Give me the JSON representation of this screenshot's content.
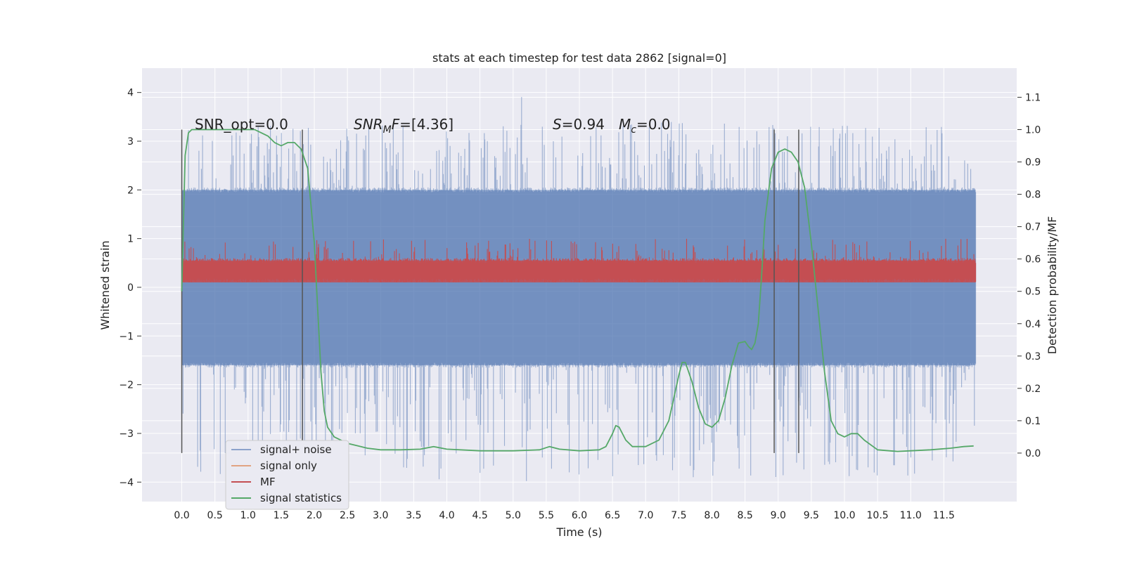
{
  "chart_data": {
    "type": "line",
    "title": "stats at each timestep for test data 2862 [signal=0]",
    "xlabel": "Time (s)",
    "ylabel": "Whitened strain",
    "ylabel_right": "Detection probability/MF",
    "xlim": [
      -0.6,
      12.6
    ],
    "ylim": [
      -4.4,
      4.5
    ],
    "ylim_right": [
      -0.15,
      1.19
    ],
    "grid": true,
    "x_ticks": [
      "0.0",
      "0.5",
      "1.0",
      "1.5",
      "2.0",
      "2.5",
      "3.0",
      "3.5",
      "4.0",
      "4.5",
      "5.0",
      "5.5",
      "6.0",
      "6.5",
      "7.0",
      "7.5",
      "8.0",
      "8.5",
      "9.0",
      "9.5",
      "10.0",
      "10.5",
      "11.0",
      "11.5"
    ],
    "y_ticks": [
      "4",
      "3",
      "2",
      "1",
      "0",
      "−1",
      "−2",
      "−3",
      "−4"
    ],
    "y_right_ticks": [
      "1.1",
      "1.0",
      "0.9",
      "0.8",
      "0.7",
      "0.6",
      "0.5",
      "0.4",
      "0.3",
      "0.2",
      "0.1",
      "0.0"
    ],
    "annotations": {
      "snr_opt": "SNR_opt=0.0",
      "snr_mf_sym": "SNR",
      "snr_mf_sub": "M",
      "snr_mf_sym2": "F",
      "snr_mf_val": "=[4.36]",
      "s_sym": "S",
      "s_val": "=0.94",
      "mc_sym": "M",
      "mc_sub": "c",
      "mc_val": "=0.0"
    },
    "vertical_markers": [
      0.0,
      1.82,
      8.94,
      9.31
    ],
    "series": [
      {
        "name": "signal+ noise",
        "color": "#4c72b0",
        "opacity": 0.5,
        "x_range": [
          0,
          11.98
        ],
        "band": [
          -1.6,
          2.0
        ],
        "peaks_max": [
          3.4,
          4.1
        ],
        "peaks_min": [
          -3.9,
          -4.0
        ],
        "axis": "left"
      },
      {
        "name": "signal only",
        "color": "#dd8452",
        "values": [],
        "axis": "left"
      },
      {
        "name": "MF",
        "color": "#c44e52",
        "x_range": [
          0,
          11.98
        ],
        "band": [
          0.1,
          0.55
        ],
        "peak_max": 1.0,
        "axis": "left"
      },
      {
        "name": "signal statistics",
        "color": "#55a868",
        "axis": "right",
        "x": [
          0.0,
          0.05,
          0.1,
          0.15,
          0.2,
          0.3,
          0.5,
          0.8,
          1.0,
          1.1,
          1.2,
          1.3,
          1.4,
          1.5,
          1.6,
          1.7,
          1.8,
          1.9,
          2.0,
          2.05,
          2.1,
          2.15,
          2.2,
          2.3,
          2.5,
          2.8,
          3.0,
          3.3,
          3.6,
          3.8,
          4.0,
          4.5,
          5.0,
          5.4,
          5.55,
          5.7,
          6.0,
          6.3,
          6.4,
          6.5,
          6.55,
          6.6,
          6.7,
          6.8,
          6.9,
          7.0,
          7.2,
          7.35,
          7.5,
          7.55,
          7.6,
          7.7,
          7.8,
          7.9,
          8.0,
          8.1,
          8.2,
          8.3,
          8.4,
          8.5,
          8.55,
          8.6,
          8.65,
          8.7,
          8.75,
          8.8,
          8.9,
          9.0,
          9.1,
          9.2,
          9.3,
          9.4,
          9.5,
          9.6,
          9.7,
          9.8,
          9.9,
          10.0,
          10.1,
          10.2,
          10.3,
          10.5,
          10.8,
          11.0,
          11.3,
          11.6,
          11.8,
          11.95
        ],
        "y": [
          0.5,
          0.92,
          0.99,
          1.0,
          1.0,
          1.0,
          1.0,
          1.0,
          1.0,
          1.0,
          0.99,
          0.98,
          0.96,
          0.95,
          0.96,
          0.96,
          0.94,
          0.88,
          0.65,
          0.45,
          0.25,
          0.13,
          0.08,
          0.05,
          0.03,
          0.015,
          0.01,
          0.01,
          0.012,
          0.02,
          0.012,
          0.007,
          0.007,
          0.01,
          0.02,
          0.012,
          0.007,
          0.01,
          0.02,
          0.06,
          0.085,
          0.08,
          0.04,
          0.02,
          0.02,
          0.02,
          0.04,
          0.1,
          0.24,
          0.28,
          0.28,
          0.22,
          0.14,
          0.09,
          0.08,
          0.1,
          0.17,
          0.27,
          0.34,
          0.345,
          0.33,
          0.32,
          0.34,
          0.4,
          0.55,
          0.72,
          0.88,
          0.93,
          0.94,
          0.93,
          0.9,
          0.82,
          0.65,
          0.45,
          0.25,
          0.1,
          0.06,
          0.05,
          0.06,
          0.06,
          0.04,
          0.01,
          0.005,
          0.007,
          0.01,
          0.015,
          0.02,
          0.022
        ]
      }
    ],
    "legend_position": "lower-left"
  }
}
